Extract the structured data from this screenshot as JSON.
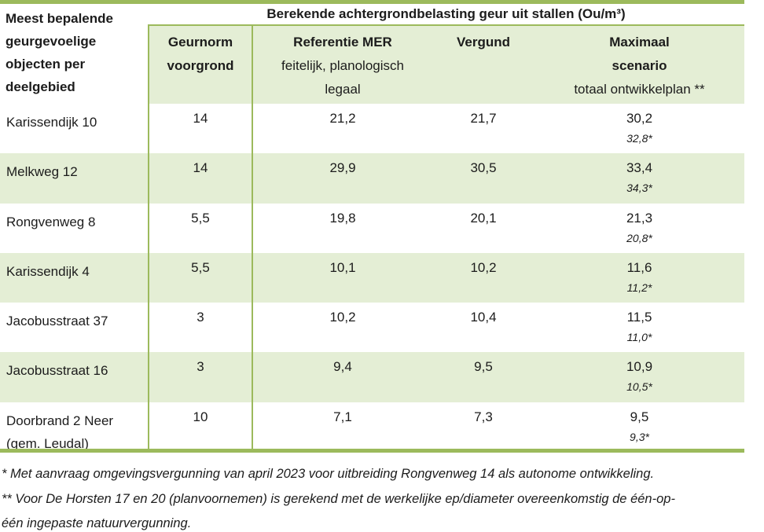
{
  "colors": {
    "accent_border": "#9cba5c",
    "row_band": "#e4eed5",
    "text": "#1c1c1c",
    "background": "#ffffff"
  },
  "table": {
    "corner_header": "Meest bepalende geurgevoelige objecten per deelgebied",
    "title": "Berekende achtergrondbelasting geur uit stallen (Ou/m³)",
    "column_headers": {
      "geurnorm_line1": "Geurnorm",
      "geurnorm_line2": "voorgrond",
      "referentie_line1": "Referentie MER",
      "referentie_line2": "feitelijk, planologisch",
      "referentie_line3": "legaal",
      "vergund": "Vergund",
      "maximaal_line1": "Maximaal",
      "maximaal_line2": "scenario",
      "maximaal_line3": "totaal ontwikkelplan **"
    },
    "rows": [
      {
        "name": "Karissendijk 10",
        "geurnorm": "14",
        "referentie": "21,2",
        "vergund": "21,7",
        "maximaal": "30,2",
        "maximaal_note": "32,8*"
      },
      {
        "name": "Melkweg 12",
        "geurnorm": "14",
        "referentie": "29,9",
        "vergund": "30,5",
        "maximaal": "33,4",
        "maximaal_note": "34,3*"
      },
      {
        "name": "Rongvenweg 8",
        "geurnorm": "5,5",
        "referentie": "19,8",
        "vergund": "20,1",
        "maximaal": "21,3",
        "maximaal_note": "20,8*"
      },
      {
        "name": "Karissendijk 4",
        "geurnorm": "5,5",
        "referentie": "10,1",
        "vergund": "10,2",
        "maximaal": "11,6",
        "maximaal_note": "11,2*"
      },
      {
        "name": "Jacobusstraat 37",
        "geurnorm": "3",
        "referentie": "10,2",
        "vergund": "10,4",
        "maximaal": "11,5",
        "maximaal_note": "11,0*"
      },
      {
        "name": "Jacobusstraat 16",
        "geurnorm": "3",
        "referentie": "9,4",
        "vergund": "9,5",
        "maximaal": "10,9",
        "maximaal_note": "10,5*"
      },
      {
        "name": "Doorbrand 2 Neer",
        "name_line2": "(gem. Leudal)",
        "geurnorm": "10",
        "referentie": "7,1",
        "vergund": "7,3",
        "maximaal": "9,5",
        "maximaal_note": "9,3*"
      }
    ]
  },
  "footnotes": [
    "* Met aanvraag omgevingsvergunning van april 2023 voor uitbreiding Rongvenweg 14 als autonome ontwikkeling.",
    "** Voor De Horsten 17 en 20 (planvoornemen) is gerekend met de werkelijke ep/diameter overeenkomstig de één-op-",
    "één ingepaste natuurvergunning."
  ]
}
